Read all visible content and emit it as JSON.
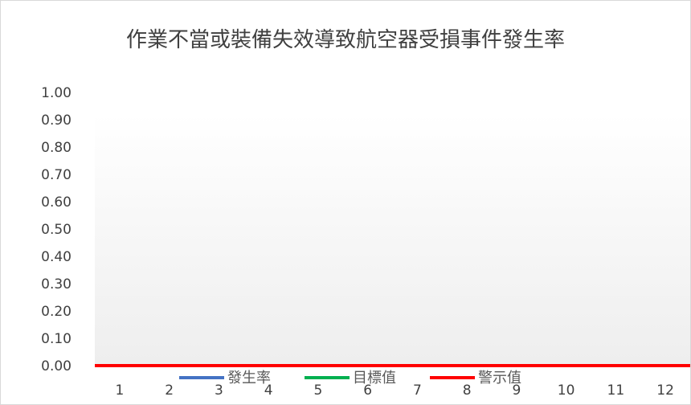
{
  "chart_data": {
    "type": "line",
    "title": "作業不當或裝備失效導致航空器受損事件發生率",
    "xlabel": "",
    "ylabel": "",
    "categories": [
      "1",
      "2",
      "3",
      "4",
      "5",
      "6",
      "7",
      "8",
      "9",
      "10",
      "11",
      "12"
    ],
    "ylim": [
      0,
      1.0
    ],
    "y_ticks": [
      "0.00",
      "0.10",
      "0.20",
      "0.30",
      "0.40",
      "0.50",
      "0.60",
      "0.70",
      "0.80",
      "0.90",
      "1.00"
    ],
    "grid": false,
    "legend_position": "bottom",
    "series": [
      {
        "name": "發生率",
        "color": "#4472c4",
        "values": [
          0,
          0,
          0,
          0,
          0,
          0,
          0,
          0,
          0,
          0,
          0,
          0
        ]
      },
      {
        "name": "目標值",
        "color": "#00b050",
        "values": [
          0,
          0,
          0,
          0,
          0,
          0,
          0,
          0,
          0,
          0,
          0,
          0
        ]
      },
      {
        "name": "警示值",
        "color": "#ff0000",
        "values": [
          0,
          0,
          0,
          0,
          0,
          0,
          0,
          0,
          0,
          0,
          0,
          0
        ]
      }
    ]
  }
}
